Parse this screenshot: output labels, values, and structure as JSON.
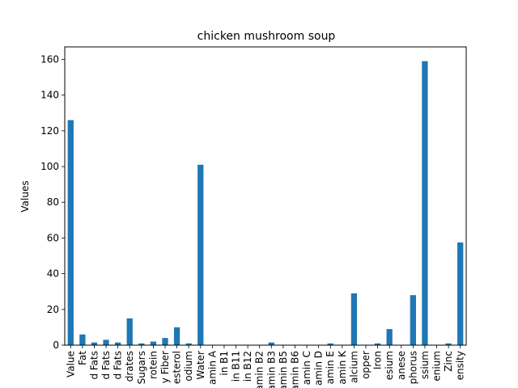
{
  "chart_data": {
    "type": "bar",
    "title": "chicken mushroom soup",
    "xlabel": "",
    "ylabel": "Values",
    "ylim": [
      0,
      167
    ],
    "yticks": [
      0,
      20,
      40,
      60,
      80,
      100,
      120,
      140,
      160
    ],
    "grid": false,
    "legend": "none",
    "bar_color": "#1f77b4",
    "categories": [
      "Value",
      "Fat",
      "d Fats",
      "d Fats",
      "d Fats",
      "drates",
      "Sugars",
      "rotein",
      "y Fiber",
      "esterol",
      "odium",
      "Water",
      "amin A",
      "in B1",
      "in B11",
      "in B12",
      "amin B2",
      "amin B3",
      "amin B5",
      "amin B6",
      "amin C",
      "amin D",
      "amin E",
      "amin K",
      "alcium",
      "opper",
      "Iron",
      "esium",
      "anese",
      "phorus",
      "ssium",
      "enium",
      "Zinc",
      "ensity"
    ],
    "values": [
      126,
      6,
      1.5,
      3,
      1.5,
      15,
      1,
      2,
      4,
      10,
      1,
      101,
      0,
      0,
      0,
      0,
      0,
      1.5,
      0,
      0,
      0,
      0,
      1,
      0,
      29,
      0,
      1,
      9,
      0,
      28,
      159,
      0,
      1,
      57.5
    ]
  }
}
